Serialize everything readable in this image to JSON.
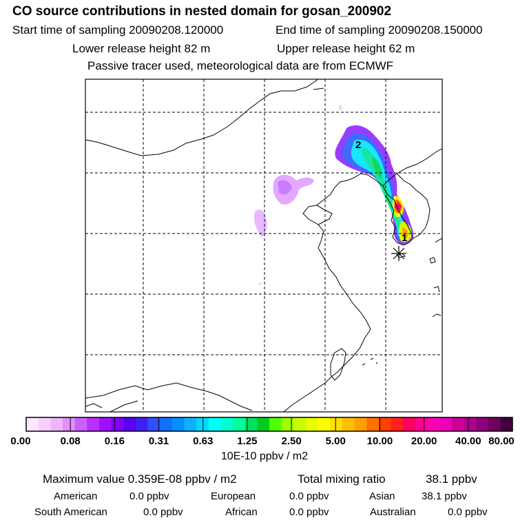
{
  "header": {
    "title": "CO  source contributions in nested domain for gosan_200902",
    "start_label": "Start time of sampling 20090208.120000",
    "end_label": "End time of sampling 20090208.150000",
    "lower_label": "Lower release height   82 m",
    "upper_label": "Upper release height   62 m",
    "note": "Passive tracer used, meteorological data are from ECMWF"
  },
  "map": {
    "markers": [
      {
        "label": "2"
      },
      {
        "label": "1"
      }
    ],
    "receptor_symbol": "asterisk-icon"
  },
  "colorbar": {
    "ticks": [
      "0.00",
      "0.08",
      "0.16",
      "0.31",
      "0.63",
      "1.25",
      "2.50",
      "5.00",
      "10.00",
      "20.00",
      "40.00",
      "80.00"
    ],
    "colors": [
      "#ffe8ff",
      "#f8d0ff",
      "#f0b4ff",
      "#e090ff",
      "#cc60ff",
      "#b830ff",
      "#a010ff",
      "#8000ff",
      "#5a00f0",
      "#4020f0",
      "#3050ff",
      "#1070ff",
      "#0090ff",
      "#10b0ff",
      "#00d8ff",
      "#00ffff",
      "#00ffd0",
      "#00ff9a",
      "#00e060",
      "#00cc20",
      "#50ff00",
      "#a0ff00",
      "#c8ff00",
      "#e8ff00",
      "#ffff00",
      "#ffe000",
      "#ffc000",
      "#ffa000",
      "#ff7000",
      "#ff4000",
      "#ff2020",
      "#ff0060",
      "#ff0090",
      "#ff00b0",
      "#ee00b8",
      "#cc0099",
      "#b00090",
      "#8e0080",
      "#6e005e",
      "#400040"
    ],
    "unit": "10E-10 ppbv / m2"
  },
  "stats": {
    "max_label": "Maximum value  0.359E-08 ppbv / m2",
    "total_label": "Total mixing ratio",
    "total_value": "38.1 ppbv",
    "regions": [
      {
        "name": "American",
        "value": "0.0 ppbv"
      },
      {
        "name": "European",
        "value": "0.0 ppbv"
      },
      {
        "name": "Asian",
        "value": "38.1 ppbv"
      },
      {
        "name": "South American",
        "value": "0.0 ppbv"
      },
      {
        "name": "African",
        "value": "0.0 ppbv"
      },
      {
        "name": "Australian",
        "value": "0.0 ppbv"
      }
    ]
  }
}
